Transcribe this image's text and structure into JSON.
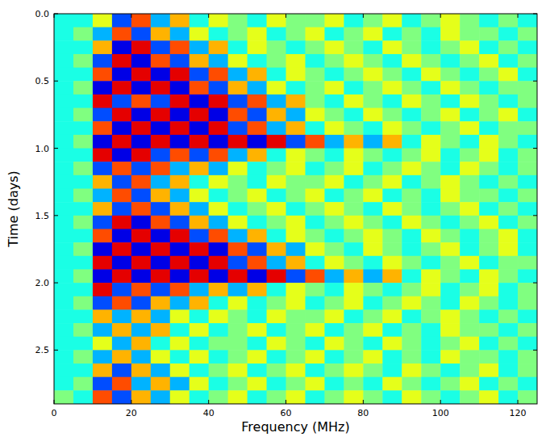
{
  "chart_data": {
    "type": "heatmap",
    "xlabel": "Frequency (MHz)",
    "ylabel": "Time (days)",
    "xlim": [
      0,
      125
    ],
    "ylim": [
      0,
      2.9
    ],
    "xticks": [
      0,
      20,
      40,
      60,
      80,
      100,
      120
    ],
    "yticks": [
      {
        "value": 0,
        "label": "0.0"
      },
      0.5,
      {
        "value": 1,
        "label": "1.0"
      },
      1.5,
      {
        "value": 2,
        "label": "2.0"
      },
      2.5
    ],
    "zlim": [
      0,
      1
    ],
    "x_bins": [
      0,
      5,
      10,
      15,
      20,
      25,
      30,
      35,
      40,
      45,
      50,
      55,
      60,
      65,
      70,
      75,
      80,
      85,
      90,
      95,
      100,
      105,
      110,
      115,
      120,
      125
    ],
    "y_bins": [
      0,
      0.1,
      0.2,
      0.3,
      0.4,
      0.5,
      0.6,
      0.7,
      0.8,
      0.9,
      1,
      1.1,
      1.2,
      1.3,
      1.4,
      1.5,
      1.6,
      1.7,
      1.8,
      1.9,
      2,
      2.1,
      2.2,
      2.3,
      2.4,
      2.5,
      2.6,
      2.7,
      2.8,
      2.9
    ],
    "cells": [
      [
        0.4,
        0.4,
        0.6,
        0.2,
        0.8,
        0.3,
        0.7,
        0.4,
        0.6,
        0.5,
        0.4,
        0.6,
        0.5,
        0.5,
        0.6,
        0.4,
        0.5,
        0.6,
        0.4,
        0.5,
        0.6,
        0.5,
        0.4,
        0.5,
        0.4
      ],
      [
        0.4,
        0.5,
        0.3,
        0.8,
        0.2,
        0.7,
        0.3,
        0.6,
        0.4,
        0.5,
        0.6,
        0.4,
        0.5,
        0.6,
        0.4,
        0.5,
        0.6,
        0.4,
        0.5,
        0.4,
        0.6,
        0.5,
        0.5,
        0.4,
        0.5
      ],
      [
        0.4,
        0.4,
        0.7,
        0.1,
        0.9,
        0.2,
        0.8,
        0.3,
        0.7,
        0.4,
        0.6,
        0.5,
        0.4,
        0.5,
        0.6,
        0.5,
        0.4,
        0.6,
        0.5,
        0.4,
        0.5,
        0.6,
        0.4,
        0.5,
        0.4
      ],
      [
        0.4,
        0.5,
        0.2,
        0.9,
        0.1,
        0.8,
        0.2,
        0.7,
        0.3,
        0.6,
        0.4,
        0.5,
        0.6,
        0.4,
        0.5,
        0.6,
        0.5,
        0.4,
        0.6,
        0.5,
        0.4,
        0.5,
        0.6,
        0.4,
        0.5
      ],
      [
        0.4,
        0.4,
        0.8,
        0.1,
        0.9,
        0.1,
        0.9,
        0.2,
        0.8,
        0.3,
        0.7,
        0.4,
        0.6,
        0.5,
        0.4,
        0.5,
        0.6,
        0.5,
        0.4,
        0.6,
        0.5,
        0.4,
        0.5,
        0.6,
        0.4
      ],
      [
        0.4,
        0.5,
        0.1,
        0.9,
        0.1,
        0.9,
        0.1,
        0.8,
        0.2,
        0.7,
        0.3,
        0.6,
        0.4,
        0.5,
        0.6,
        0.4,
        0.5,
        0.6,
        0.5,
        0.4,
        0.6,
        0.5,
        0.4,
        0.5,
        0.5
      ],
      [
        0.4,
        0.4,
        0.9,
        0.2,
        0.8,
        0.2,
        0.9,
        0.1,
        0.9,
        0.2,
        0.8,
        0.3,
        0.7,
        0.5,
        0.4,
        0.6,
        0.5,
        0.4,
        0.6,
        0.5,
        0.4,
        0.6,
        0.5,
        0.4,
        0.5
      ],
      [
        0.4,
        0.5,
        0.2,
        0.9,
        0.1,
        0.9,
        0.1,
        0.9,
        0.1,
        0.8,
        0.2,
        0.7,
        0.3,
        0.6,
        0.5,
        0.4,
        0.6,
        0.5,
        0.4,
        0.5,
        0.6,
        0.4,
        0.5,
        0.6,
        0.4
      ],
      [
        0.4,
        0.4,
        0.8,
        0.1,
        0.9,
        0.1,
        0.9,
        0.1,
        0.9,
        0.2,
        0.8,
        0.3,
        0.7,
        0.4,
        0.6,
        0.5,
        0.4,
        0.6,
        0.5,
        0.4,
        0.5,
        0.6,
        0.4,
        0.5,
        0.5
      ],
      [
        0.4,
        0.5,
        0.1,
        0.9,
        0.1,
        0.9,
        0.1,
        0.9,
        0.1,
        0.9,
        0.1,
        0.9,
        0.2,
        0.8,
        0.3,
        0.7,
        0.3,
        0.7,
        0.4,
        0.6,
        0.5,
        0.4,
        0.6,
        0.5,
        0.4
      ],
      [
        0.4,
        0.4,
        0.9,
        0.1,
        0.9,
        0.2,
        0.8,
        0.2,
        0.8,
        0.3,
        0.7,
        0.4,
        0.6,
        0.5,
        0.4,
        0.6,
        0.5,
        0.4,
        0.5,
        0.6,
        0.4,
        0.5,
        0.6,
        0.4,
        0.5
      ],
      [
        0.4,
        0.5,
        0.2,
        0.8,
        0.2,
        0.8,
        0.3,
        0.7,
        0.3,
        0.6,
        0.4,
        0.5,
        0.6,
        0.4,
        0.5,
        0.6,
        0.4,
        0.5,
        0.6,
        0.5,
        0.4,
        0.6,
        0.5,
        0.4,
        0.5
      ],
      [
        0.4,
        0.4,
        0.7,
        0.2,
        0.8,
        0.3,
        0.7,
        0.4,
        0.6,
        0.5,
        0.4,
        0.6,
        0.5,
        0.5,
        0.6,
        0.4,
        0.5,
        0.6,
        0.4,
        0.5,
        0.6,
        0.5,
        0.4,
        0.5,
        0.4
      ],
      [
        0.4,
        0.5,
        0.3,
        0.8,
        0.2,
        0.7,
        0.3,
        0.6,
        0.4,
        0.5,
        0.6,
        0.4,
        0.5,
        0.6,
        0.4,
        0.5,
        0.6,
        0.4,
        0.5,
        0.4,
        0.6,
        0.5,
        0.5,
        0.4,
        0.5
      ],
      [
        0.4,
        0.4,
        0.7,
        0.2,
        0.8,
        0.2,
        0.7,
        0.3,
        0.6,
        0.4,
        0.5,
        0.6,
        0.4,
        0.5,
        0.6,
        0.5,
        0.4,
        0.6,
        0.5,
        0.4,
        0.5,
        0.6,
        0.4,
        0.5,
        0.4
      ],
      [
        0.4,
        0.5,
        0.2,
        0.9,
        0.1,
        0.8,
        0.2,
        0.7,
        0.3,
        0.6,
        0.4,
        0.5,
        0.6,
        0.4,
        0.5,
        0.6,
        0.5,
        0.4,
        0.6,
        0.5,
        0.4,
        0.5,
        0.6,
        0.4,
        0.5
      ],
      [
        0.4,
        0.4,
        0.8,
        0.1,
        0.9,
        0.1,
        0.9,
        0.2,
        0.8,
        0.3,
        0.7,
        0.4,
        0.6,
        0.5,
        0.4,
        0.5,
        0.6,
        0.5,
        0.4,
        0.6,
        0.5,
        0.4,
        0.5,
        0.6,
        0.4
      ],
      [
        0.4,
        0.5,
        0.1,
        0.9,
        0.1,
        0.9,
        0.1,
        0.9,
        0.1,
        0.8,
        0.2,
        0.7,
        0.3,
        0.6,
        0.5,
        0.4,
        0.6,
        0.5,
        0.4,
        0.5,
        0.6,
        0.4,
        0.5,
        0.6,
        0.4
      ],
      [
        0.4,
        0.4,
        0.9,
        0.1,
        0.9,
        0.1,
        0.9,
        0.1,
        0.9,
        0.2,
        0.8,
        0.3,
        0.7,
        0.4,
        0.6,
        0.5,
        0.4,
        0.6,
        0.5,
        0.4,
        0.5,
        0.6,
        0.4,
        0.5,
        0.5
      ],
      [
        0.4,
        0.5,
        0.1,
        0.9,
        0.1,
        0.9,
        0.1,
        0.9,
        0.1,
        0.9,
        0.1,
        0.9,
        0.2,
        0.8,
        0.3,
        0.7,
        0.3,
        0.7,
        0.4,
        0.6,
        0.5,
        0.4,
        0.6,
        0.5,
        0.4
      ],
      [
        0.4,
        0.4,
        0.9,
        0.2,
        0.8,
        0.2,
        0.8,
        0.3,
        0.7,
        0.3,
        0.7,
        0.4,
        0.6,
        0.5,
        0.4,
        0.6,
        0.5,
        0.4,
        0.5,
        0.6,
        0.4,
        0.5,
        0.6,
        0.4,
        0.5
      ],
      [
        0.4,
        0.5,
        0.2,
        0.8,
        0.2,
        0.7,
        0.3,
        0.7,
        0.4,
        0.6,
        0.4,
        0.5,
        0.6,
        0.4,
        0.5,
        0.6,
        0.4,
        0.5,
        0.6,
        0.5,
        0.4,
        0.6,
        0.5,
        0.4,
        0.5
      ],
      [
        0.4,
        0.4,
        0.7,
        0.3,
        0.7,
        0.3,
        0.6,
        0.4,
        0.6,
        0.5,
        0.4,
        0.6,
        0.5,
        0.5,
        0.6,
        0.4,
        0.5,
        0.6,
        0.4,
        0.5,
        0.6,
        0.5,
        0.4,
        0.5,
        0.4
      ],
      [
        0.4,
        0.5,
        0.3,
        0.7,
        0.3,
        0.7,
        0.4,
        0.6,
        0.4,
        0.5,
        0.6,
        0.4,
        0.5,
        0.6,
        0.4,
        0.5,
        0.6,
        0.4,
        0.5,
        0.4,
        0.6,
        0.5,
        0.5,
        0.4,
        0.5
      ],
      [
        0.4,
        0.4,
        0.6,
        0.3,
        0.7,
        0.4,
        0.6,
        0.4,
        0.5,
        0.5,
        0.4,
        0.6,
        0.5,
        0.4,
        0.6,
        0.5,
        0.4,
        0.6,
        0.5,
        0.4,
        0.5,
        0.6,
        0.4,
        0.5,
        0.4
      ],
      [
        0.4,
        0.5,
        0.3,
        0.7,
        0.3,
        0.6,
        0.4,
        0.6,
        0.4,
        0.5,
        0.6,
        0.4,
        0.5,
        0.6,
        0.4,
        0.5,
        0.6,
        0.4,
        0.5,
        0.4,
        0.6,
        0.5,
        0.5,
        0.4,
        0.5
      ],
      [
        0.4,
        0.4,
        0.7,
        0.2,
        0.7,
        0.3,
        0.6,
        0.4,
        0.5,
        0.6,
        0.4,
        0.5,
        0.6,
        0.4,
        0.5,
        0.6,
        0.5,
        0.4,
        0.6,
        0.5,
        0.4,
        0.5,
        0.6,
        0.4,
        0.5
      ],
      [
        0.4,
        0.5,
        0.2,
        0.8,
        0.3,
        0.7,
        0.3,
        0.6,
        0.4,
        0.5,
        0.6,
        0.4,
        0.5,
        0.6,
        0.4,
        0.5,
        0.4,
        0.6,
        0.5,
        0.4,
        0.5,
        0.6,
        0.4,
        0.5,
        0.4
      ],
      [
        0.5,
        0.4,
        0.8,
        0.2,
        0.7,
        0.3,
        0.6,
        0.4,
        0.5,
        0.6,
        0.4,
        0.5,
        0.6,
        0.4,
        0.5,
        0.6,
        0.5,
        0.4,
        0.6,
        0.5,
        0.4,
        0.5,
        0.6,
        0.4,
        0.5
      ]
    ]
  }
}
